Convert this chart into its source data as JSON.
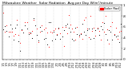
{
  "title": "Milwaukee Weather  Solar Radiation  Avg per Day W/m²/minute",
  "title_fontsize": 3.2,
  "bg_color": "#ffffff",
  "plot_bg": "#ffffff",
  "grid_color": "#bbbbbb",
  "dot_color_red": "#ff0000",
  "dot_color_black": "#000000",
  "legend_label": "Solar Rad",
  "ylim": [
    0,
    1.0
  ],
  "yticks": [
    0.0,
    0.2,
    0.4,
    0.6,
    0.8,
    1.0
  ],
  "ytick_labels": [
    "0",
    ".2",
    ".4",
    ".6",
    ".8",
    "1"
  ],
  "ylabel_fontsize": 3.0,
  "xlabel_fontsize": 2.5,
  "red_x": [
    0,
    1,
    2,
    3,
    4,
    5,
    6,
    7,
    8,
    9,
    10,
    11,
    13,
    14,
    15,
    16,
    17,
    18,
    20,
    21,
    22,
    23,
    24,
    25,
    26,
    27,
    28,
    29,
    30,
    31,
    32,
    33,
    34,
    35,
    36,
    37,
    38,
    39,
    40,
    41,
    42,
    43,
    44,
    45,
    46,
    47,
    48,
    49,
    50,
    51,
    52,
    53,
    54,
    55,
    56,
    57,
    58,
    59,
    60,
    61,
    62,
    63,
    64,
    65,
    66,
    67,
    68,
    69,
    70
  ],
  "red_y": [
    0.72,
    0.55,
    0.62,
    0.48,
    0.58,
    0.51,
    0.44,
    0.6,
    0.65,
    0.4,
    0.35,
    0.55,
    0.65,
    0.7,
    0.52,
    0.6,
    0.48,
    0.72,
    0.55,
    0.45,
    0.38,
    0.62,
    0.58,
    0.42,
    0.5,
    0.35,
    0.55,
    0.68,
    0.45,
    0.6,
    0.52,
    0.48,
    0.62,
    0.55,
    0.42,
    0.65,
    0.58,
    0.7,
    0.5,
    0.6,
    0.45,
    0.38,
    0.55,
    0.48,
    0.62,
    0.52,
    0.7,
    0.6,
    0.55,
    0.45,
    0.65,
    0.5,
    0.58,
    0.42,
    0.6,
    0.55,
    0.48,
    0.65,
    0.52,
    0.7,
    0.58,
    0.45,
    0.62,
    0.55,
    0.5,
    0.65,
    0.48,
    0.6,
    0.55
  ],
  "blk_x": [
    0,
    1,
    2,
    3,
    4,
    5,
    6,
    7,
    8,
    9,
    10,
    11,
    12,
    13,
    14,
    15,
    16,
    17,
    18,
    19,
    20,
    21,
    22,
    23,
    24,
    25,
    26,
    27,
    28,
    29,
    30,
    31,
    32,
    33,
    34,
    35,
    36,
    37,
    38,
    39,
    40,
    41,
    42,
    43,
    44,
    45,
    46,
    47,
    48,
    49,
    50,
    51,
    52,
    53,
    54,
    55,
    56,
    57,
    58,
    59,
    60,
    61,
    62,
    63,
    64,
    65,
    66,
    67,
    68,
    69,
    70
  ],
  "blk_y": [
    0.65,
    0.5,
    0.55,
    0.42,
    0.52,
    0.45,
    0.38,
    0.55,
    0.58,
    0.35,
    0.3,
    0.5,
    0.42,
    0.6,
    0.65,
    0.48,
    0.55,
    0.42,
    0.65,
    0.5,
    0.4,
    0.3,
    0.55,
    0.52,
    0.38,
    0.45,
    0.28,
    0.5,
    0.62,
    0.38,
    0.55,
    0.45,
    0.42,
    0.55,
    0.5,
    0.38,
    0.58,
    0.52,
    0.65,
    0.45,
    0.55,
    0.4,
    0.32,
    0.5,
    0.42,
    0.55,
    0.45,
    0.65,
    0.55,
    0.5,
    0.4,
    0.6,
    0.45,
    0.52,
    0.38,
    0.55,
    0.5,
    0.42,
    0.58,
    0.48,
    0.65,
    0.52,
    0.4,
    0.58,
    0.5,
    0.45,
    0.6,
    0.42,
    0.55,
    0.48,
    0.62
  ],
  "vline_every": 5,
  "n_points": 71
}
